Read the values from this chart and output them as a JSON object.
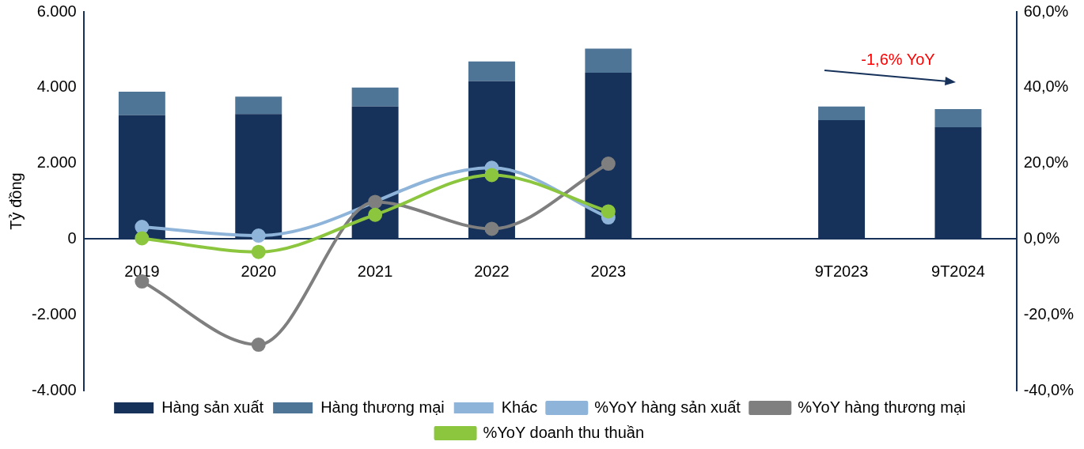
{
  "chart_data": {
    "type": "bar",
    "stacked": true,
    "ylabel": "Tỷ đồng",
    "categories": [
      "2019",
      "2020",
      "2021",
      "2022",
      "2023",
      null,
      "9T2023",
      "9T2024"
    ],
    "series": [
      {
        "name": "Hàng sản xuất",
        "color": "#17325a",
        "values": [
          3270,
          3300,
          3500,
          4170,
          4390,
          null,
          3140,
          2950
        ]
      },
      {
        "name": "Hàng thương mại",
        "color": "#4f7596",
        "values": [
          620,
          460,
          500,
          520,
          640,
          null,
          360,
          480
        ]
      },
      {
        "name": "Khác",
        "color": "#8fb4d9",
        "values": [
          null,
          null,
          null,
          null,
          null,
          null,
          null,
          null
        ]
      },
      {
        "name": "%YoY hàng sản xuất",
        "type": "line",
        "axis": "y2",
        "color": "#8fb4d9",
        "values": [
          3.2,
          0.9,
          null,
          18.8,
          5.7,
          null,
          null,
          null
        ]
      },
      {
        "name": "%YoY hàng thương mại",
        "type": "line",
        "axis": "y2",
        "color": "#7f7f7f",
        "values": [
          -11.2,
          -27.9,
          9.8,
          2.7,
          19.9,
          null,
          null,
          null
        ]
      },
      {
        "name": "%YoY doanh thu thuần",
        "type": "line",
        "axis": "y2",
        "color": "#8cc63f",
        "values": [
          0.2,
          -3.4,
          6.4,
          16.9,
          7.3,
          null,
          null,
          null
        ]
      }
    ],
    "ylim": [
      -4000,
      6000
    ],
    "yticks": [
      {
        "value": -4000,
        "label": "-4.000"
      },
      {
        "value": -2000,
        "label": "-2.000"
      },
      {
        "value": 0,
        "label": "0"
      },
      {
        "value": 2000,
        "label": "2.000"
      },
      {
        "value": 4000,
        "label": "4.000"
      },
      {
        "value": 6000,
        "label": "6.000"
      }
    ],
    "y2lim": [
      -40,
      60
    ],
    "y2ticks": [
      {
        "value": -40,
        "label": "-40,0%"
      },
      {
        "value": -20,
        "label": "-20,0%"
      },
      {
        "value": 0,
        "label": "0,0%"
      },
      {
        "value": 20,
        "label": "20,0%"
      },
      {
        "value": 40,
        "label": "40,0%"
      },
      {
        "value": 60,
        "label": "60,0%"
      }
    ],
    "annotations": [
      "-1,6% YoY"
    ],
    "grid": false,
    "legend": "bottom",
    "marker": "circle",
    "line_style": "solid"
  }
}
